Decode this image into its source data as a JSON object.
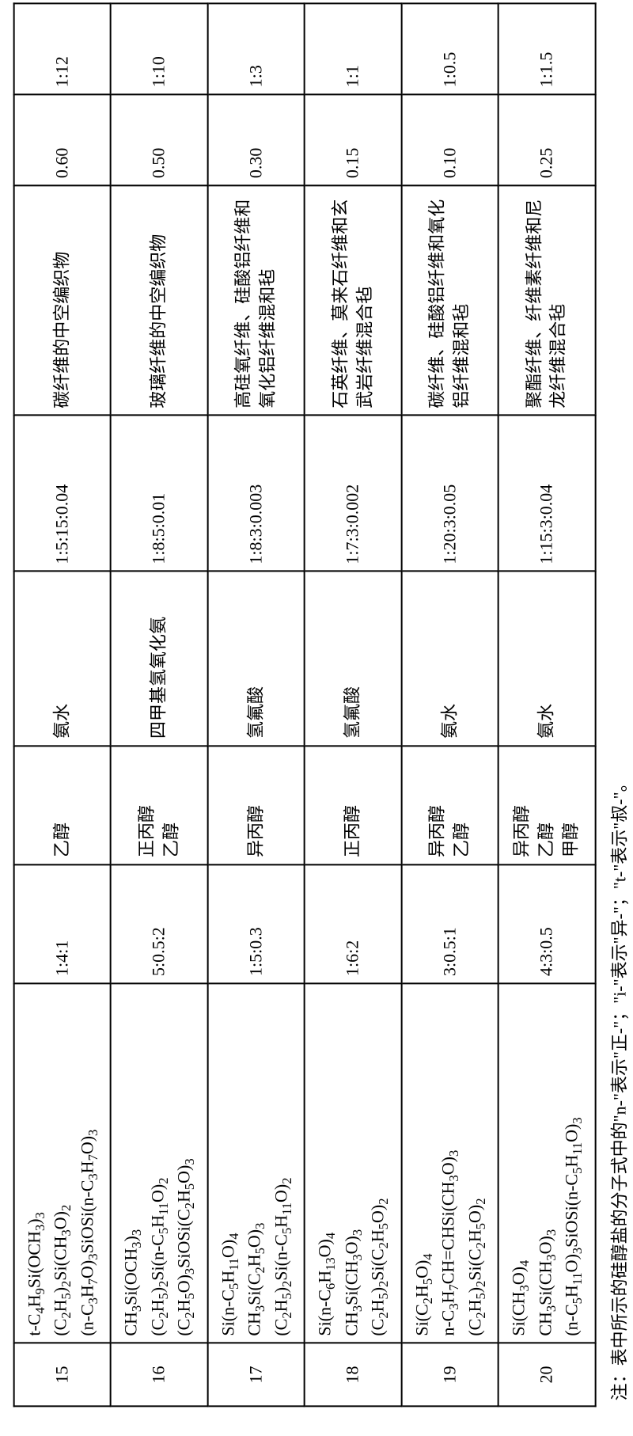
{
  "table": {
    "rows": [
      {
        "id": "15",
        "formula": "t-C<sub>4</sub>H<sub>9</sub>Si(OCH<sub>3</sub>)<sub>3</sub><br>(C<sub>2</sub>H<sub>5</sub>)<sub>2</sub>Si(CH<sub>3</sub>O)<sub>2</sub><br>(n-C<sub>3</sub>H<sub>7</sub>O)<sub>3</sub>SiOSi(n-C<sub>3</sub>H<sub>7</sub>O)<sub>3</sub>",
        "ratio1": "1:4:1",
        "solvent": "乙醇",
        "catalyst": "氨水",
        "ratio2": "1:5:15:0.04",
        "fiber": "碳纤维的中空编织物",
        "val1": "0.60",
        "val2": "1:12"
      },
      {
        "id": "16",
        "formula": "CH<sub>3</sub>Si(OCH<sub>3</sub>)<sub>3</sub><br>(C<sub>2</sub>H<sub>5</sub>)<sub>2</sub>Si(n-C<sub>5</sub>H<sub>11</sub>O)<sub>2</sub><br>(C<sub>2</sub>H<sub>5</sub>O)<sub>3</sub>SiOSi(C<sub>2</sub>H<sub>5</sub>O)<sub>3</sub>",
        "ratio1": "5:0.5:2",
        "solvent": "正丙醇<br>乙醇",
        "catalyst": "四甲基氢氧化氨",
        "ratio2": "1:8:5:0.01",
        "fiber": "玻璃纤维的中空编织物",
        "val1": "0.50",
        "val2": "1:10"
      },
      {
        "id": "17",
        "formula": "Si(n-C<sub>5</sub>H<sub>11</sub>O)<sub>4</sub><br>CH<sub>3</sub>Si(C<sub>2</sub>H<sub>5</sub>O)<sub>3</sub><br>(C<sub>2</sub>H<sub>5</sub>)<sub>2</sub>Si(n-C<sub>5</sub>H<sub>11</sub>O)<sub>2</sub>",
        "ratio1": "1:5:0.3",
        "solvent": "异丙醇",
        "catalyst": "氢氟酸",
        "ratio2": "1:8:3:0.003",
        "fiber": "高硅氧纤维、硅酸铝纤维和氧化铝纤维混和毡",
        "val1": "0.30",
        "val2": "1:3"
      },
      {
        "id": "18",
        "formula": "Si(n-C<sub>6</sub>H<sub>13</sub>O)<sub>4</sub><br>CH<sub>3</sub>Si(CH<sub>3</sub>O)<sub>3</sub><br>(C<sub>2</sub>H<sub>5</sub>)<sub>2</sub>Si(C<sub>2</sub>H<sub>5</sub>O)<sub>2</sub>",
        "ratio1": "1:6:2",
        "solvent": "正丙醇",
        "catalyst": "氢氟酸",
        "ratio2": "1:7:3:0.002",
        "fiber": "石英纤维、莫来石纤维和玄武岩纤维混合毡",
        "val1": "0.15",
        "val2": "1:1"
      },
      {
        "id": "19",
        "formula": "Si(C<sub>2</sub>H<sub>5</sub>O)<sub>4</sub><br>n-C<sub>3</sub>H<sub>7</sub>CH=CHSi(CH<sub>3</sub>O)<sub>3</sub><br>(C<sub>2</sub>H<sub>5</sub>)<sub>2</sub>Si(C<sub>2</sub>H<sub>5</sub>O)<sub>2</sub>",
        "ratio1": "3:0.5:1",
        "solvent": "异丙醇<br>乙醇",
        "catalyst": "氨水",
        "ratio2": "1:20:3:0.05",
        "fiber": "碳纤维、硅酸铝纤维和氧化铝纤维混和毡",
        "val1": "0.10",
        "val2": "1:0.5"
      },
      {
        "id": "20",
        "formula": "Si(CH<sub>3</sub>O)<sub>4</sub><br>CH<sub>3</sub>Si(CH<sub>3</sub>O)<sub>3</sub><br>(n-C<sub>5</sub>H<sub>11</sub>O)<sub>3</sub>SiOSi(n-C<sub>5</sub>H<sub>11</sub>O)<sub>3</sub>",
        "ratio1": "4:3:0.5",
        "solvent": "异丙醇<br>乙醇<br>甲醇",
        "catalyst": "氨水",
        "ratio2": "1:15:3:0.04",
        "fiber": "聚酯纤维、纤维素纤维和尼龙纤维混合毡",
        "val1": "0.25",
        "val2": "1:1.5"
      }
    ]
  },
  "note": "注：表中所示的硅醇盐的分子式中的\"n-\"表示\"正-\"；\"i-\"表示\"异-\"；\"t-\"表示\"叔-\"。",
  "style": {
    "background": "#ffffff",
    "border_color": "#000000",
    "font_family": "Times New Roman",
    "cell_fontsize": 22
  }
}
